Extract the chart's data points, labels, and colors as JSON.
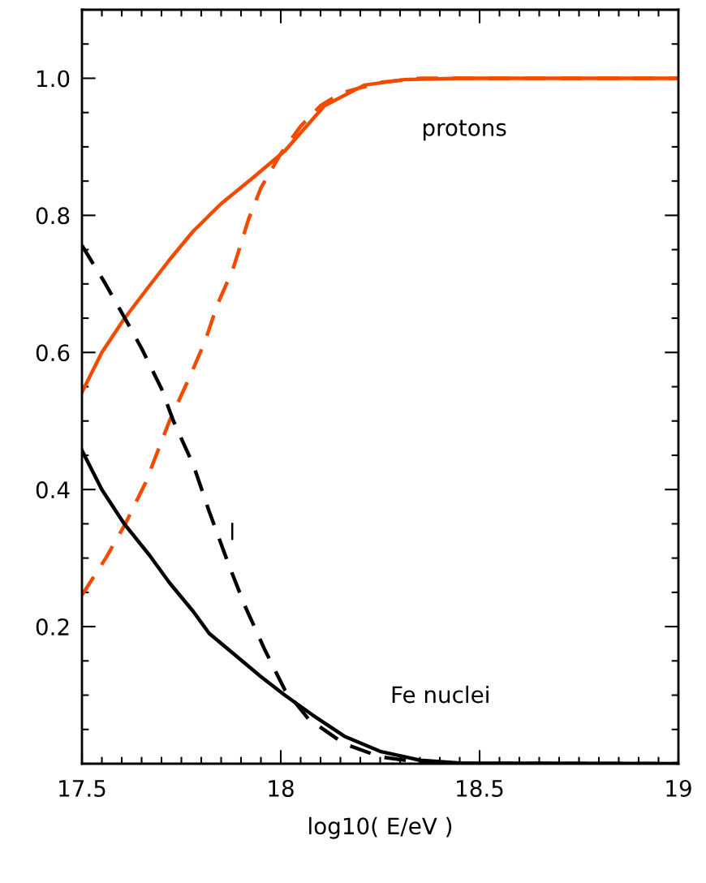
{
  "chart_data": {
    "type": "line",
    "xlabel": "log10( E/eV )",
    "xlim": [
      17.5,
      19
    ],
    "xticks": [
      17.5,
      18,
      18.5,
      19
    ],
    "ylim": [
      0,
      1.1
    ],
    "yticks": [
      0.2,
      0.4,
      0.6,
      0.8,
      {
        "value": 1.0,
        "label": "1.0"
      }
    ],
    "grid": false,
    "series": [
      {
        "color": "#f24b00",
        "line_style": "solid",
        "x": [
          17.5,
          17.55,
          17.605,
          17.66,
          17.72,
          17.78,
          17.85,
          17.93,
          18.01,
          18.11,
          18.21,
          18.31,
          18.45,
          19
        ],
        "values": [
          0.542,
          0.6,
          0.648,
          0.69,
          0.735,
          0.777,
          0.817,
          0.855,
          0.894,
          0.96,
          0.99,
          0.998,
          1.0,
          1.0
        ]
      },
      {
        "color": "#f24b00",
        "line_style": "dashed",
        "x": [
          17.5,
          17.56,
          17.61,
          17.66,
          17.72,
          17.77,
          17.81,
          17.84,
          17.88,
          17.92,
          17.95,
          18.0,
          18.05,
          18.1,
          18.15,
          18.25,
          18.35,
          19
        ],
        "values": [
          0.246,
          0.3,
          0.351,
          0.41,
          0.5,
          0.563,
          0.617,
          0.669,
          0.722,
          0.796,
          0.84,
          0.89,
          0.93,
          0.96,
          0.978,
          0.994,
          1.0,
          1.0
        ]
      },
      {
        "color": "#000000",
        "line_style": "solid",
        "x": [
          17.5,
          17.55,
          17.605,
          17.67,
          17.72,
          17.78,
          17.82,
          17.88,
          17.95,
          18.01,
          18.08,
          18.16,
          18.25,
          18.35,
          18.45,
          19
        ],
        "values": [
          0.457,
          0.4,
          0.351,
          0.304,
          0.264,
          0.222,
          0.19,
          0.161,
          0.127,
          0.1,
          0.071,
          0.04,
          0.018,
          0.005,
          0.001,
          0.0
        ]
      },
      {
        "color": "#000000",
        "line_style": "dashed",
        "x": [
          17.5,
          17.555,
          17.605,
          17.65,
          17.7,
          17.73,
          17.78,
          17.82,
          17.87,
          17.91,
          17.96,
          18.01,
          18.07,
          18.16,
          18.25,
          18.35,
          18.45,
          19
        ],
        "values": [
          0.756,
          0.704,
          0.653,
          0.606,
          0.547,
          0.5,
          0.436,
          0.368,
          0.289,
          0.23,
          0.166,
          0.108,
          0.065,
          0.029,
          0.01,
          0.002,
          0.0,
          0.0
        ]
      }
    ],
    "annotations": [
      "protons",
      "Fe nuclei",
      "l"
    ]
  }
}
